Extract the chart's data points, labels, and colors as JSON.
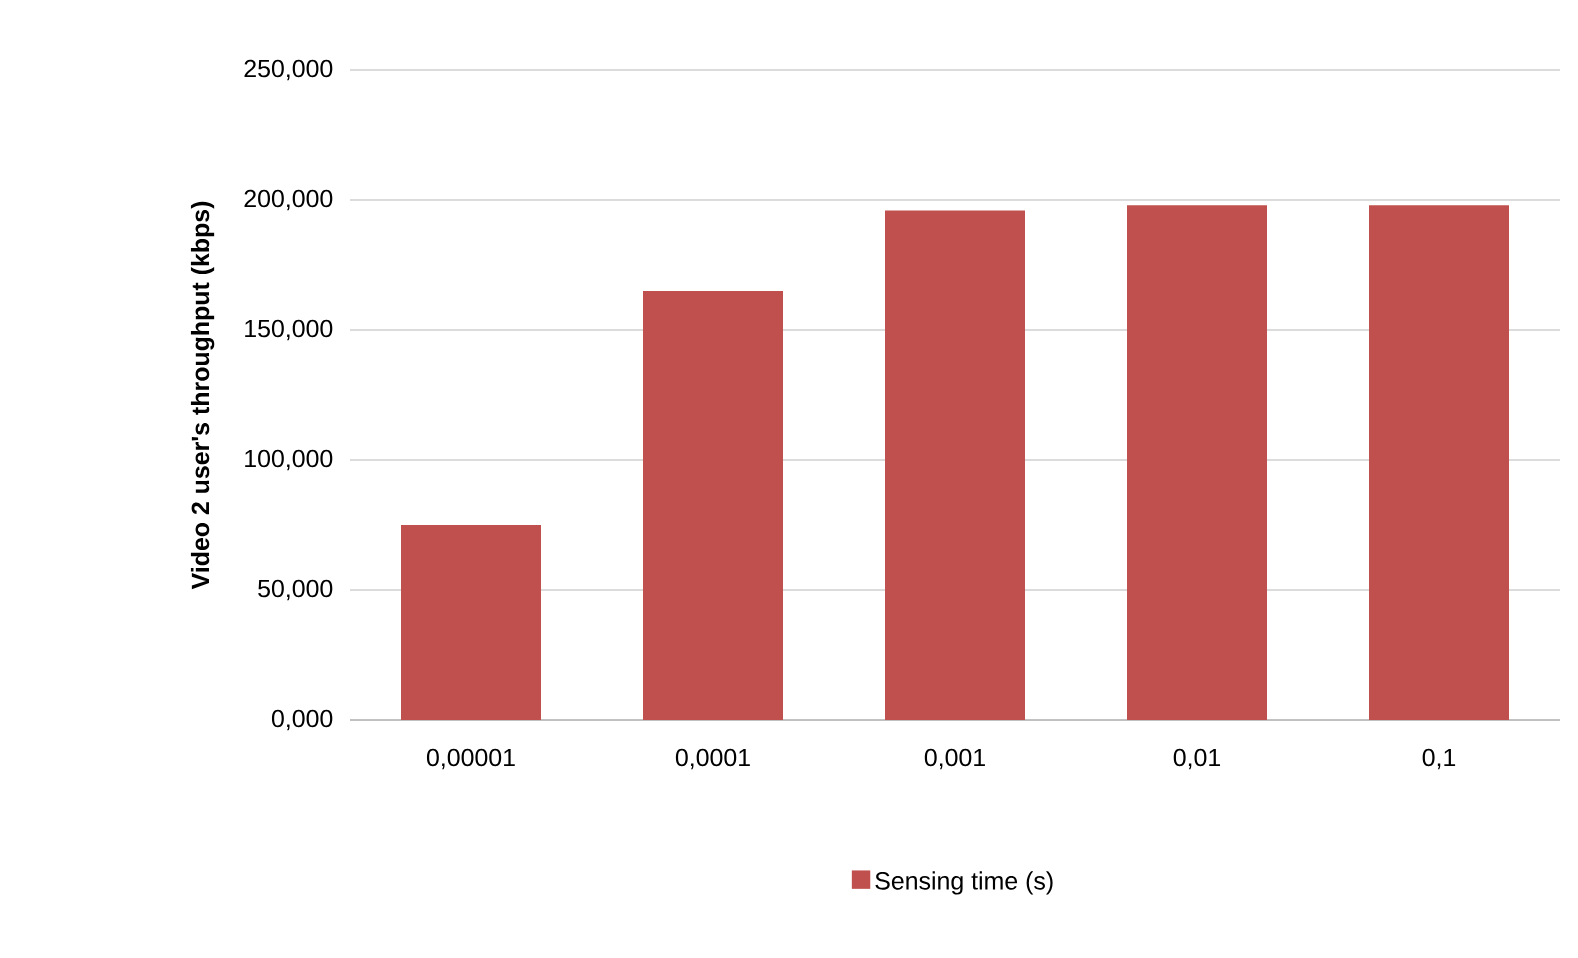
{
  "chart_data": {
    "type": "bar",
    "ylabel": "Video 2 user's throughput  (kbps)",
    "categories": [
      "0,00001",
      "0,0001",
      "0,001",
      "0,01",
      "0,1"
    ],
    "series": [
      {
        "name": "Sensing time  (s)",
        "color": "#c0504d",
        "values": [
          75,
          165,
          196,
          198,
          198
        ]
      }
    ],
    "ylim": [
      0,
      250
    ],
    "yticks": [
      {
        "value": 0,
        "label": "0,000"
      },
      {
        "value": 50,
        "label": "50,000"
      },
      {
        "value": 100,
        "label": "100,000"
      },
      {
        "value": 150,
        "label": "150,000"
      },
      {
        "value": 200,
        "label": "200,000"
      },
      {
        "value": 250,
        "label": "250,000"
      }
    ],
    "grid": "y",
    "legend": "bottom"
  }
}
